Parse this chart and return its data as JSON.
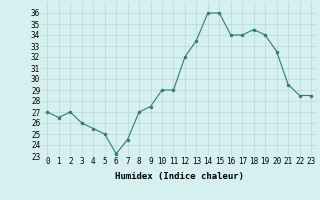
{
  "x": [
    0,
    1,
    2,
    3,
    4,
    5,
    6,
    7,
    8,
    9,
    10,
    11,
    12,
    13,
    14,
    15,
    16,
    17,
    18,
    19,
    20,
    21,
    22,
    23
  ],
  "y": [
    27,
    26.5,
    27,
    26,
    25.5,
    25,
    23.2,
    24.5,
    27,
    27.5,
    29,
    29,
    32,
    33.5,
    36,
    36,
    34,
    34,
    34.5,
    34,
    32.5,
    29.5,
    28.5,
    28.5
  ],
  "xlabel": "Humidex (Indice chaleur)",
  "xlim": [
    -0.5,
    23.5
  ],
  "ylim": [
    23,
    37
  ],
  "yticks": [
    23,
    24,
    25,
    26,
    27,
    28,
    29,
    30,
    31,
    32,
    33,
    34,
    35,
    36
  ],
  "xtick_labels": [
    "0",
    "1",
    "2",
    "3",
    "4",
    "5",
    "6",
    "7",
    "8",
    "9",
    "10",
    "11",
    "12",
    "13",
    "14",
    "15",
    "16",
    "17",
    "18",
    "19",
    "20",
    "21",
    "22",
    "23"
  ],
  "line_color": "#2e7d6e",
  "marker": "o",
  "marker_size": 2.0,
  "bg_color": "#d6efef",
  "grid_color": "#b8d8d8",
  "label_fontsize": 6.5,
  "tick_fontsize": 5.5
}
